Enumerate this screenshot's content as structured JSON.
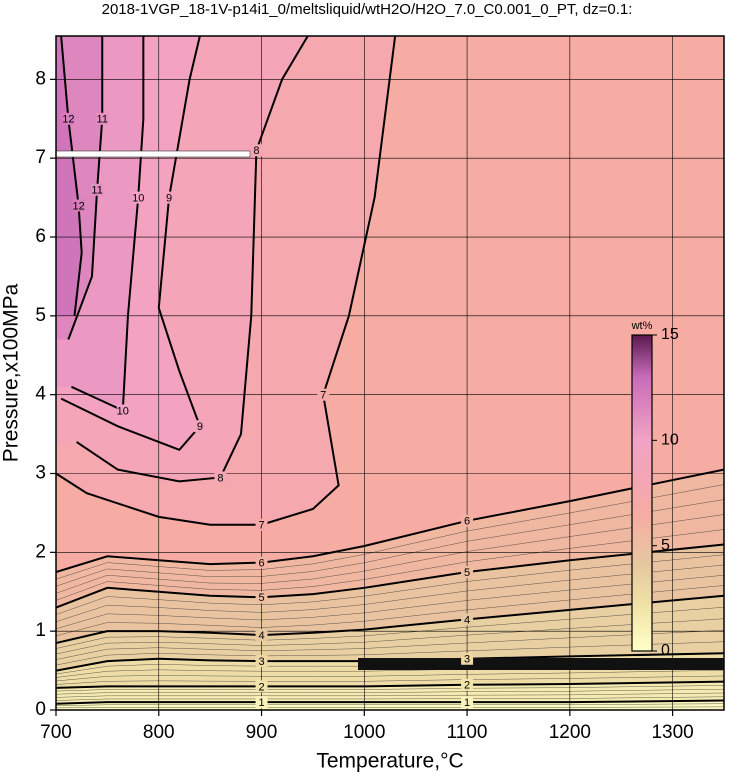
{
  "chart_data": {
    "type": "contour",
    "title": "2018-1VGP_18-1V-p14i1_0/meltsliquid/wtH2O/H2O_7.0_C0.001_0_PT, dz=0.1:",
    "xlabel": "Temperature,°C",
    "ylabel": "Pressure,x100MPa",
    "xlim": [
      700,
      1350
    ],
    "ylim": [
      0,
      8.55
    ],
    "xticks": [
      700,
      800,
      900,
      1000,
      1100,
      1200,
      1300
    ],
    "yticks": [
      0,
      1,
      2,
      3,
      4,
      5,
      6,
      7,
      8
    ],
    "grid": true,
    "colormap": {
      "values": [
        0,
        2,
        4,
        6.5,
        8,
        10,
        13,
        15
      ],
      "colors": [
        "#ffffc8",
        "#f2e4aa",
        "#e6c9a0",
        "#f6aca2",
        "#f4a6b4",
        "#f2a2c4",
        "#c86cb8",
        "#5a1a50"
      ]
    },
    "colorbar": {
      "label": "wt%",
      "lim": [
        0,
        15
      ],
      "ticks": [
        0,
        5,
        10,
        15
      ]
    },
    "contours": [
      {
        "level": 1,
        "x": [
          700,
          750,
          800,
          850,
          900,
          950,
          1000,
          1100,
          1200,
          1350
        ],
        "y": [
          0.08,
          0.1,
          0.1,
          0.1,
          0.1,
          0.1,
          0.1,
          0.1,
          0.1,
          0.12
        ]
      },
      {
        "level": 2,
        "x": [
          700,
          750,
          800,
          850,
          900,
          950,
          1000,
          1100,
          1200,
          1350
        ],
        "y": [
          0.28,
          0.3,
          0.3,
          0.3,
          0.3,
          0.3,
          0.3,
          0.32,
          0.33,
          0.36
        ]
      },
      {
        "level": 3,
        "x": [
          700,
          750,
          800,
          850,
          900,
          950,
          1000,
          1100,
          1200,
          1350
        ],
        "y": [
          0.5,
          0.62,
          0.65,
          0.63,
          0.62,
          0.62,
          0.62,
          0.65,
          0.68,
          0.72
        ]
      },
      {
        "level": 4,
        "x": [
          700,
          750,
          800,
          850,
          900,
          950,
          1000,
          1100,
          1200,
          1350
        ],
        "y": [
          0.85,
          1.0,
          1.0,
          0.98,
          0.95,
          0.98,
          1.02,
          1.15,
          1.27,
          1.45
        ]
      },
      {
        "level": 5,
        "x": [
          700,
          750,
          800,
          850,
          900,
          950,
          1000,
          1100,
          1200,
          1350
        ],
        "y": [
          1.3,
          1.55,
          1.5,
          1.45,
          1.43,
          1.47,
          1.55,
          1.75,
          1.9,
          2.1
        ]
      },
      {
        "level": 6,
        "x": [
          700,
          750,
          800,
          850,
          900,
          950,
          1000,
          1100,
          1200,
          1350
        ],
        "y": [
          1.75,
          1.95,
          1.9,
          1.85,
          1.87,
          1.95,
          2.08,
          2.4,
          2.65,
          3.05
        ]
      },
      {
        "level": 7,
        "x": [
          700,
          730,
          800,
          850,
          900,
          950,
          975,
          960,
          985,
          1010,
          1030
        ],
        "y": [
          3.0,
          2.75,
          2.45,
          2.35,
          2.35,
          2.55,
          2.85,
          4.0,
          5.0,
          6.5,
          8.55
        ]
      },
      {
        "level": 8,
        "x": [
          720,
          760,
          820,
          860,
          880,
          890,
          895,
          920,
          945
        ],
        "y": [
          3.4,
          3.05,
          2.9,
          2.95,
          3.5,
          5.0,
          7.1,
          8.0,
          8.55
        ]
      },
      {
        "level": 9,
        "x": [
          705,
          760,
          820,
          840,
          820,
          800,
          810,
          830,
          840
        ],
        "y": [
          3.95,
          3.6,
          3.3,
          3.6,
          4.3,
          5.1,
          6.5,
          8.0,
          8.55
        ]
      },
      {
        "level": 10,
        "x": [
          715,
          740,
          765,
          770,
          780,
          785,
          785
        ],
        "y": [
          4.1,
          3.95,
          3.8,
          5.0,
          6.5,
          7.5,
          8.55
        ]
      },
      {
        "level": 11,
        "x": [
          712,
          735,
          740,
          745,
          745
        ],
        "y": [
          4.7,
          5.5,
          6.6,
          7.5,
          8.55
        ]
      },
      {
        "level": 12,
        "x": [
          718,
          725,
          722,
          712,
          705
        ],
        "y": [
          5.0,
          5.8,
          6.4,
          7.5,
          8.55
        ]
      }
    ]
  }
}
